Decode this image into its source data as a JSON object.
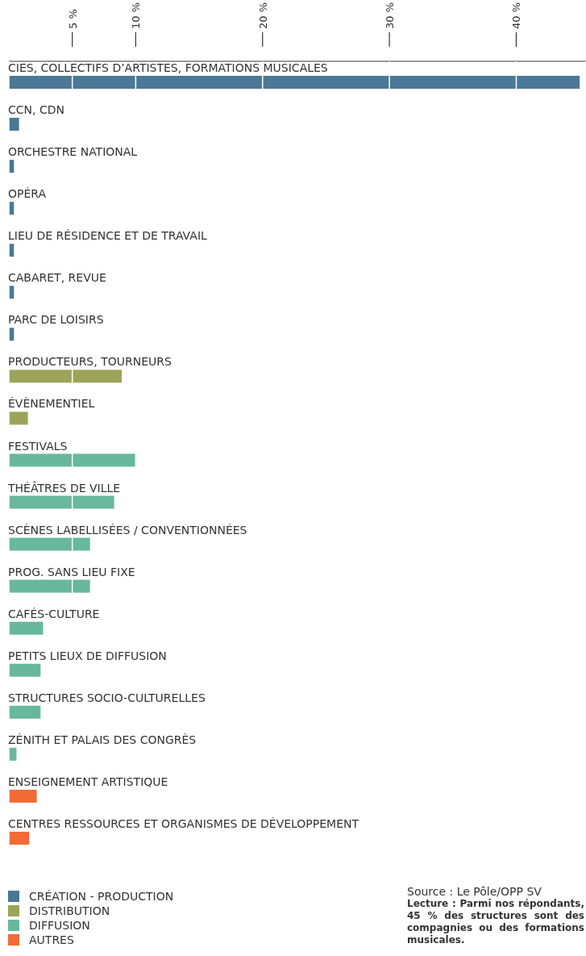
{
  "chart_data": {
    "type": "bar",
    "orientation": "horizontal",
    "categories": [
      "CIES, COLLECTIFS D’ARTISTES, FORMATIONS MUSICALES",
      "CCN, CDN",
      "ORCHESTRE NATIONAL",
      "OPÉRA",
      "LIEU DE RÉSIDENCE ET DE TRAVAIL",
      "CABARET, REVUE",
      "PARC DE LOISIRS",
      "PRODUCTEURS, TOURNEURS",
      "ÉVÈNEMENTIEL",
      "FESTIVALS",
      "THÉÂTRES DE VILLE",
      "SCÈNES LABELLISÉES / CONVENTIONNÉES",
      "PROG. SANS LIEU FIXE",
      "CAFÉS-CULTURE",
      "PETITS LIEUX DE DIFFUSION",
      "STRUCTURES SOCIO-CULTURELLES",
      "ZÉNITH ET PALAIS DES CONGRÈS",
      "ENSEIGNEMENT ARTISTIQUE",
      "CENTRES RESSOURCES ET ORGANISMES DE DÉVELOPPEMENT"
    ],
    "series": [
      {
        "name": "CRÉATION - PRODUCTION",
        "color": "#4a7896",
        "values": [
          45,
          0.8,
          0.4,
          0.4,
          0.4,
          0.4,
          0.4,
          null,
          null,
          null,
          null,
          null,
          null,
          null,
          null,
          null,
          null,
          null,
          null
        ]
      },
      {
        "name": "DISTRIBUTION",
        "color": "#9ca45a",
        "values": [
          null,
          null,
          null,
          null,
          null,
          null,
          null,
          8.9,
          1.5,
          null,
          null,
          null,
          null,
          null,
          null,
          null,
          null,
          null,
          null
        ]
      },
      {
        "name": "DIFFUSION",
        "color": "#68b89e",
        "values": [
          null,
          null,
          null,
          null,
          null,
          null,
          null,
          null,
          null,
          10,
          8.3,
          6.4,
          6.4,
          2.7,
          2.5,
          2.5,
          0.6,
          null,
          null
        ]
      },
      {
        "name": "AUTRES",
        "color": "#f26a36",
        "values": [
          null,
          null,
          null,
          null,
          null,
          null,
          null,
          null,
          null,
          null,
          null,
          null,
          null,
          null,
          null,
          null,
          null,
          2.2,
          1.6
        ]
      }
    ],
    "xlim": [
      0,
      45.5
    ],
    "xticks": [
      {
        "value": 5,
        "label": "5 %"
      },
      {
        "value": 10,
        "label": "10 %"
      },
      {
        "value": 20,
        "label": "20 %"
      },
      {
        "value": 30,
        "label": "30 %"
      },
      {
        "value": 40,
        "label": "40 %"
      }
    ],
    "grid": "x",
    "legend": "bottom left",
    "annotations": [
      "Source : Le Pôle/OPP SV",
      "Lecture : Parmi nos répondants, 45 % des structures sont des compagnies ou des formations musicales."
    ]
  }
}
